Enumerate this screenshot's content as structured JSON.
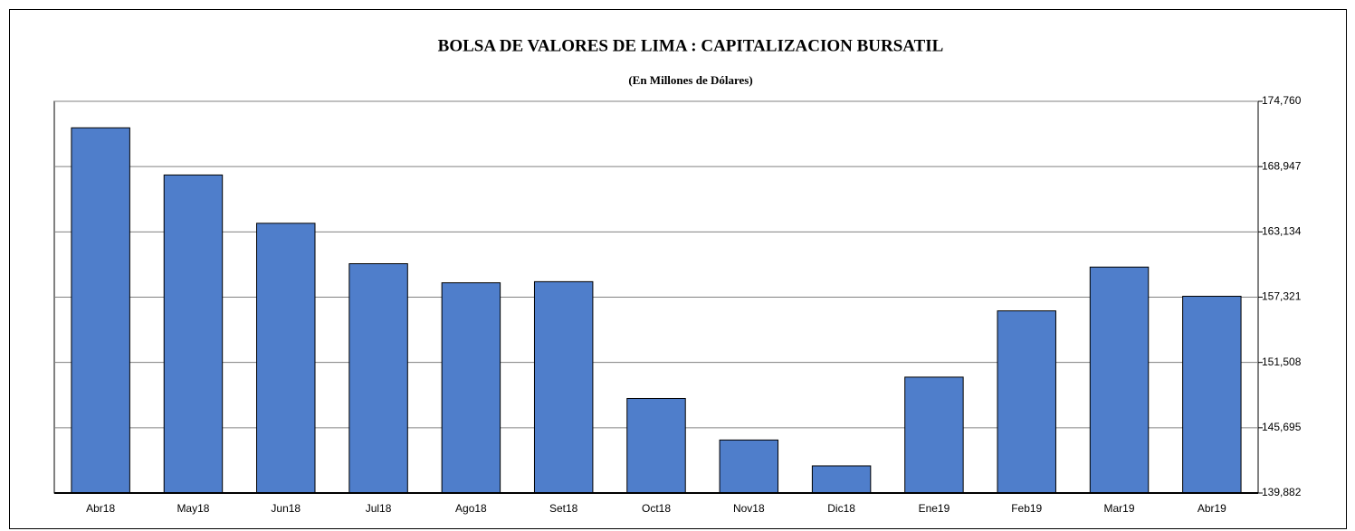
{
  "chart_data": {
    "type": "bar",
    "title": "BOLSA DE VALORES DE LIMA : CAPITALIZACION BURSATIL",
    "subtitle": "(En Millones de Dólares)",
    "categories": [
      "Abr18",
      "May18",
      "Jun18",
      "Jul18",
      "Ago18",
      "Set18",
      "Oct18",
      "Nov18",
      "Dic18",
      "Ene19",
      "Feb19",
      "Mar19",
      "Abr19"
    ],
    "values": [
      172400,
      168200,
      163900,
      160300,
      158600,
      158700,
      148300,
      144600,
      142300,
      150200,
      156100,
      160000,
      157400
    ],
    "color": "#4f7ecb",
    "ylim": [
      139882,
      174760
    ],
    "yticks": [
      {
        "value": 139882,
        "label": "139,882"
      },
      {
        "value": 145695,
        "label": "145,695"
      },
      {
        "value": 151508,
        "label": "151,508"
      },
      {
        "value": 157321,
        "label": "157,321"
      },
      {
        "value": 163134,
        "label": "163,134"
      },
      {
        "value": 168947,
        "label": "168,947"
      },
      {
        "value": 174760,
        "label": "174,760"
      }
    ],
    "grid": true
  }
}
